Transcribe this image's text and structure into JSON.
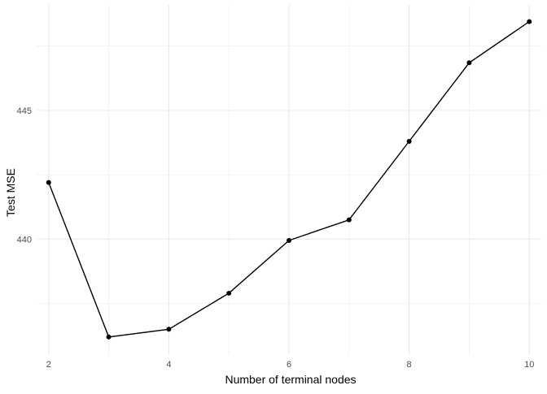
{
  "chart_data": {
    "type": "line",
    "title": "",
    "xlabel": "Number of terminal nodes",
    "ylabel": "Test MSE",
    "x": [
      2,
      3,
      4,
      5,
      6,
      7,
      8,
      9,
      10
    ],
    "y": [
      442.2,
      436.2,
      436.5,
      437.9,
      439.95,
      440.75,
      443.8,
      446.85,
      448.45
    ],
    "xlim": [
      1.8,
      10.2
    ],
    "ylim": [
      435.5,
      449.1
    ],
    "x_ticks": [
      2,
      4,
      6,
      8,
      10
    ],
    "y_ticks": [
      440,
      445
    ],
    "x_tick_labels": [
      "2",
      "4",
      "6",
      "8",
      "10"
    ],
    "y_tick_labels": [
      "440",
      "445"
    ],
    "grid": true,
    "line_color": "#000000",
    "point_color": "#000000",
    "grid_color": "#ebebeb"
  }
}
